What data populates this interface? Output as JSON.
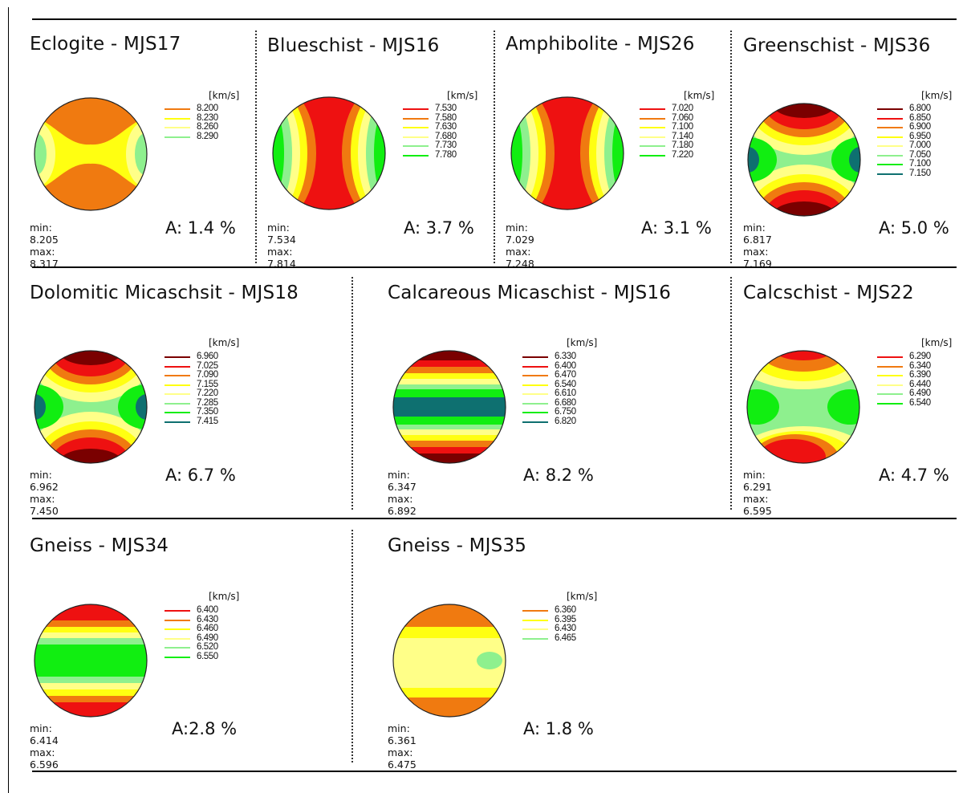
{
  "unit_label": "[km/s]",
  "colors": {
    "darkred": "#7a0000",
    "red": "#ee1111",
    "orange": "#f07a10",
    "yellow": "#ffff11",
    "lightyellow": "#ffff88",
    "lightgreen": "#8ef08e",
    "green": "#11ee11",
    "teal": "#0e7070"
  },
  "panels": [
    {
      "title": "Eclogite - MJS17",
      "pattern": "eclogite",
      "legend": [
        {
          "value": "8.200",
          "color": "orange"
        },
        {
          "value": "8.230",
          "color": "yellow"
        },
        {
          "value": "8.260",
          "color": "lightyellow"
        },
        {
          "value": "8.290",
          "color": "lightgreen"
        }
      ],
      "min": "min: 8.205",
      "max": "max: 8.317",
      "anisotropy": "A: 1.4 %"
    },
    {
      "title": "Blueschist - MJS16",
      "pattern": "vertical",
      "legend": [
        {
          "value": "7.530",
          "color": "red"
        },
        {
          "value": "7.580",
          "color": "orange"
        },
        {
          "value": "7.630",
          "color": "yellow"
        },
        {
          "value": "7.680",
          "color": "lightyellow"
        },
        {
          "value": "7.730",
          "color": "lightgreen"
        },
        {
          "value": "7.780",
          "color": "green"
        }
      ],
      "min": "min: 7.534",
      "max": "max: 7.814",
      "anisotropy": "A: 3.7 %"
    },
    {
      "title": "Amphibolite - MJS26",
      "pattern": "vertical",
      "legend": [
        {
          "value": "7.020",
          "color": "red"
        },
        {
          "value": "7.060",
          "color": "orange"
        },
        {
          "value": "7.100",
          "color": "yellow"
        },
        {
          "value": "7.140",
          "color": "lightyellow"
        },
        {
          "value": "7.180",
          "color": "lightgreen"
        },
        {
          "value": "7.220",
          "color": "green"
        }
      ],
      "min": "min: 7.029",
      "max": "max: 7.248",
      "anisotropy": "A: 3.1 %"
    },
    {
      "title": "Greenschist - MJS36",
      "pattern": "saddle",
      "legend": [
        {
          "value": "6.800",
          "color": "darkred"
        },
        {
          "value": "6.850",
          "color": "red"
        },
        {
          "value": "6.900",
          "color": "orange"
        },
        {
          "value": "6.950",
          "color": "yellow"
        },
        {
          "value": "7.000",
          "color": "lightyellow"
        },
        {
          "value": "7.050",
          "color": "lightgreen"
        },
        {
          "value": "7.100",
          "color": "green"
        },
        {
          "value": "7.150",
          "color": "teal"
        }
      ],
      "min": "min: 6.817",
      "max": "max: 7.169",
      "anisotropy": "A: 5.0 %"
    },
    {
      "title": "Dolomitic Micaschsit - MJS18",
      "pattern": "saddle",
      "legend": [
        {
          "value": "6.960",
          "color": "darkred"
        },
        {
          "value": "7.025",
          "color": "red"
        },
        {
          "value": "7.090",
          "color": "orange"
        },
        {
          "value": "7.155",
          "color": "yellow"
        },
        {
          "value": "7.220",
          "color": "lightyellow"
        },
        {
          "value": "7.285",
          "color": "lightgreen"
        },
        {
          "value": "7.350",
          "color": "green"
        },
        {
          "value": "7.415",
          "color": "teal"
        }
      ],
      "min": "min: 6.962",
      "max": "max: 7.450",
      "anisotropy": "A: 6.7 %"
    },
    {
      "title": "Calcareous Micaschist - MJS16",
      "pattern": "bands-teal",
      "legend": [
        {
          "value": "6.330",
          "color": "darkred"
        },
        {
          "value": "6.400",
          "color": "red"
        },
        {
          "value": "6.470",
          "color": "orange"
        },
        {
          "value": "6.540",
          "color": "yellow"
        },
        {
          "value": "6.610",
          "color": "lightyellow"
        },
        {
          "value": "6.680",
          "color": "lightgreen"
        },
        {
          "value": "6.750",
          "color": "green"
        },
        {
          "value": "6.820",
          "color": "teal"
        }
      ],
      "min": "min: 6.347",
      "max": "max: 6.892",
      "anisotropy": "A: 8.2 %"
    },
    {
      "title": "Calcschist - MJS22",
      "pattern": "calcschist",
      "legend": [
        {
          "value": "6.290",
          "color": "red"
        },
        {
          "value": "6.340",
          "color": "orange"
        },
        {
          "value": "6.390",
          "color": "yellow"
        },
        {
          "value": "6.440",
          "color": "lightyellow"
        },
        {
          "value": "6.490",
          "color": "lightgreen"
        },
        {
          "value": "6.540",
          "color": "green"
        }
      ],
      "min": "min: 6.291",
      "max": "max: 6.595",
      "anisotropy": "A: 4.7 %"
    },
    {
      "title": "Gneiss - MJS34",
      "pattern": "bands-green",
      "legend": [
        {
          "value": "6.400",
          "color": "red"
        },
        {
          "value": "6.430",
          "color": "orange"
        },
        {
          "value": "6.460",
          "color": "yellow"
        },
        {
          "value": "6.490",
          "color": "lightyellow"
        },
        {
          "value": "6.520",
          "color": "lightgreen"
        },
        {
          "value": "6.550",
          "color": "green"
        }
      ],
      "min": "min: 6.414",
      "max": "max: 6.596",
      "anisotropy": "A:2.8 %"
    },
    {
      "title": "Gneiss - MJS35",
      "pattern": "gneiss35",
      "legend": [
        {
          "value": "6.360",
          "color": "orange"
        },
        {
          "value": "6.395",
          "color": "yellow"
        },
        {
          "value": "6.430",
          "color": "lightyellow"
        },
        {
          "value": "6.465",
          "color": "lightgreen"
        }
      ],
      "min": "min: 6.361",
      "max": "max: 6.475",
      "anisotropy": "A: 1.8 %"
    }
  ]
}
